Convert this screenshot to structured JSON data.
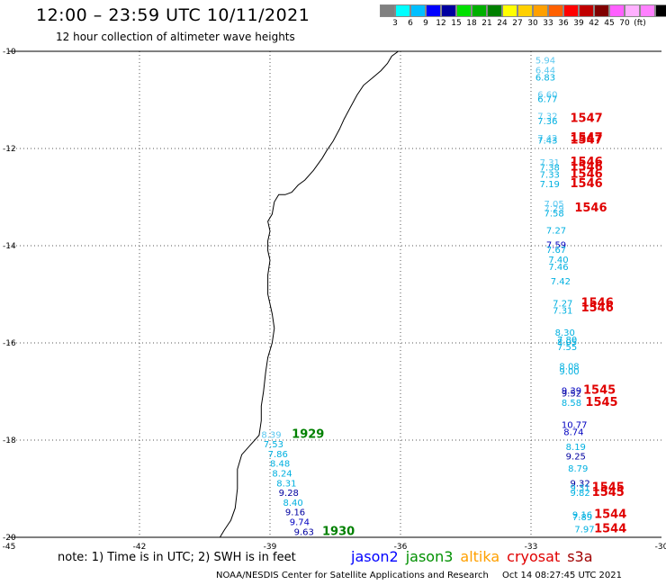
{
  "header": {
    "title": "12:00 – 23:59 UTC 10/11/2021",
    "subtitle": "12 hour collection of altimeter wave heights"
  },
  "legend": {
    "colors": [
      "#808080",
      "#00ffff",
      "#00bfff",
      "#0000ff",
      "#0000a0",
      "#00e000",
      "#00b000",
      "#008000",
      "#ffff00",
      "#ffd000",
      "#ffa000",
      "#ff6000",
      "#ff0000",
      "#c00000",
      "#800000",
      "#ff60ff",
      "#ffb0ff",
      "#ff80ff",
      "#000000"
    ],
    "labels": [
      "3",
      "6",
      "9",
      "12",
      "15",
      "18",
      "21",
      "24",
      "27",
      "30",
      "33",
      "36",
      "39",
      "42",
      "45",
      "70",
      "(ft)"
    ]
  },
  "map": {
    "lon_range": [
      -45,
      -30
    ],
    "lat_range": [
      -20,
      -10
    ],
    "lon_ticks": [
      -45,
      -42,
      -39,
      -36,
      -33,
      -30
    ],
    "lon_tick_labels": [
      "-45",
      "-42",
      "-39",
      "-36",
      "-33",
      "-30"
    ],
    "lat_ticks": [
      -10,
      -12,
      -14,
      -16,
      -18,
      -20
    ],
    "lat_tick_labels": [
      "-10",
      "-12",
      "-14",
      "-16",
      "-18",
      "-20"
    ],
    "gridlines": true
  },
  "observations": [
    {
      "lon": -32.9,
      "lat": -10.25,
      "value": "5.94",
      "color": "#5ac8f0"
    },
    {
      "lon": -32.9,
      "lat": -10.45,
      "value": "6.44",
      "color": "#5ac8f0"
    },
    {
      "lon": -32.9,
      "lat": -10.6,
      "value": "6.83",
      "color": "#00b0e0"
    },
    {
      "lon": -32.85,
      "lat": -10.95,
      "value": "6.60",
      "color": "#5ac8f0"
    },
    {
      "lon": -32.85,
      "lat": -11.05,
      "value": "6.77",
      "color": "#00b0e0"
    },
    {
      "lon": -32.85,
      "lat": -11.4,
      "value": "7.32",
      "color": "#5ac8f0"
    },
    {
      "lon": -32.85,
      "lat": -11.5,
      "value": "7.36",
      "color": "#00b0e0"
    },
    {
      "lon": -32.85,
      "lat": -11.85,
      "value": "7.42",
      "color": "#5ac8f0"
    },
    {
      "lon": -32.85,
      "lat": -11.9,
      "value": "7.43",
      "color": "#00b0e0"
    },
    {
      "lon": -32.8,
      "lat": -12.35,
      "value": "7.31",
      "color": "#5ac8f0"
    },
    {
      "lon": -32.8,
      "lat": -12.45,
      "value": "7.38",
      "color": "#00b0e0"
    },
    {
      "lon": -32.8,
      "lat": -12.6,
      "value": "7.33",
      "color": "#00b0e0"
    },
    {
      "lon": -32.8,
      "lat": -12.8,
      "value": "7.19",
      "color": "#00b0e0"
    },
    {
      "lon": -32.7,
      "lat": -13.2,
      "value": "7.05",
      "color": "#5ac8f0"
    },
    {
      "lon": -32.7,
      "lat": -13.3,
      "value": "7.29",
      "color": "#5ac8f0"
    },
    {
      "lon": -32.7,
      "lat": -13.4,
      "value": "7.58",
      "color": "#00b0e0"
    },
    {
      "lon": -32.65,
      "lat": -13.75,
      "value": "7.27",
      "color": "#00b0e0"
    },
    {
      "lon": -32.65,
      "lat": -14.05,
      "value": "7.59",
      "color": "#0000c0"
    },
    {
      "lon": -32.65,
      "lat": -14.15,
      "value": "7.67",
      "color": "#00b0e0"
    },
    {
      "lon": -32.6,
      "lat": -14.35,
      "value": "7.40",
      "color": "#00b0e0"
    },
    {
      "lon": -32.6,
      "lat": -14.5,
      "value": "7.46",
      "color": "#00b0e0"
    },
    {
      "lon": -32.55,
      "lat": -14.8,
      "value": "7.42",
      "color": "#00b0e0"
    },
    {
      "lon": -32.5,
      "lat": -15.25,
      "value": "7.27",
      "color": "#00b0e0"
    },
    {
      "lon": -32.5,
      "lat": -15.4,
      "value": "7.31",
      "color": "#00b0e0"
    },
    {
      "lon": -32.45,
      "lat": -15.85,
      "value": "8.30",
      "color": "#00b0e0"
    },
    {
      "lon": -32.4,
      "lat": -16.0,
      "value": "7.80",
      "color": "#00b0e0"
    },
    {
      "lon": -32.4,
      "lat": -16.05,
      "value": "8.05",
      "color": "#00b0e0"
    },
    {
      "lon": -32.4,
      "lat": -16.15,
      "value": "7.55",
      "color": "#00b0e0"
    },
    {
      "lon": -32.35,
      "lat": -16.55,
      "value": "8.08",
      "color": "#00b0e0"
    },
    {
      "lon": -32.35,
      "lat": -16.65,
      "value": "9.00",
      "color": "#00b0e0"
    },
    {
      "lon": -32.3,
      "lat": -17.05,
      "value": "9.39",
      "color": "#0000c0"
    },
    {
      "lon": -32.3,
      "lat": -17.1,
      "value": "9.52",
      "color": "#0000a0"
    },
    {
      "lon": -32.3,
      "lat": -17.3,
      "value": "8.58",
      "color": "#00b0e0"
    },
    {
      "lon": -32.3,
      "lat": -17.75,
      "value": "10.77",
      "color": "#0000c0"
    },
    {
      "lon": -32.25,
      "lat": -17.9,
      "value": "8.74",
      "color": "#0000c0"
    },
    {
      "lon": -32.2,
      "lat": -18.2,
      "value": "8.19",
      "color": "#00b0e0"
    },
    {
      "lon": -32.2,
      "lat": -18.4,
      "value": "9.25",
      "color": "#0000a0"
    },
    {
      "lon": -32.15,
      "lat": -18.65,
      "value": "8.79",
      "color": "#00b0e0"
    },
    {
      "lon": -32.1,
      "lat": -18.95,
      "value": "9.32",
      "color": "#0000a0"
    },
    {
      "lon": -32.1,
      "lat": -19.05,
      "value": "9.31",
      "color": "#00b0e0"
    },
    {
      "lon": -32.1,
      "lat": -19.15,
      "value": "9.82",
      "color": "#00b0e0"
    },
    {
      "lon": -32.05,
      "lat": -19.6,
      "value": "9.16",
      "color": "#00b0e0"
    },
    {
      "lon": -32.05,
      "lat": -19.65,
      "value": "7.89",
      "color": "#00b0e0"
    },
    {
      "lon": -32.0,
      "lat": -19.9,
      "value": "7.97",
      "color": "#00b0e0"
    },
    {
      "lon": -39.2,
      "lat": -17.95,
      "value": "8.39",
      "color": "#5ac8f0"
    },
    {
      "lon": -39.15,
      "lat": -18.15,
      "value": "7.53",
      "color": "#00b0e0"
    },
    {
      "lon": -39.05,
      "lat": -18.35,
      "value": "7.86",
      "color": "#00b0e0"
    },
    {
      "lon": -39.0,
      "lat": -18.55,
      "value": "8.48",
      "color": "#00b0e0"
    },
    {
      "lon": -38.95,
      "lat": -18.75,
      "value": "8.24",
      "color": "#00b0e0"
    },
    {
      "lon": -38.85,
      "lat": -18.95,
      "value": "8.31",
      "color": "#00b0e0"
    },
    {
      "lon": -38.8,
      "lat": -19.15,
      "value": "9.28",
      "color": "#0000a0"
    },
    {
      "lon": -38.7,
      "lat": -19.35,
      "value": "8.40",
      "color": "#00b0e0"
    },
    {
      "lon": -38.65,
      "lat": -19.55,
      "value": "9.16",
      "color": "#0000a0"
    },
    {
      "lon": -38.55,
      "lat": -19.75,
      "value": "9.74",
      "color": "#0000c0"
    },
    {
      "lon": -38.45,
      "lat": -19.95,
      "value": "9.63",
      "color": "#0000a0"
    }
  ],
  "times": [
    {
      "lon": -32.1,
      "lat": -11.45,
      "value": "1547",
      "color": "#e00000"
    },
    {
      "lon": -32.1,
      "lat": -11.85,
      "value": "1547",
      "color": "#e00000"
    },
    {
      "lon": -32.1,
      "lat": -11.9,
      "value": "1547",
      "color": "#e00000"
    },
    {
      "lon": -32.1,
      "lat": -12.35,
      "value": "1546",
      "color": "#e00000"
    },
    {
      "lon": -32.1,
      "lat": -12.45,
      "value": "1546",
      "color": "#e00000"
    },
    {
      "lon": -32.1,
      "lat": -12.6,
      "value": "1546",
      "color": "#e00000"
    },
    {
      "lon": -32.1,
      "lat": -12.8,
      "value": "1546",
      "color": "#e00000"
    },
    {
      "lon": -32.0,
      "lat": -13.3,
      "value": "1546",
      "color": "#e00000"
    },
    {
      "lon": -31.85,
      "lat": -15.25,
      "value": "1546",
      "color": "#e00000"
    },
    {
      "lon": -31.85,
      "lat": -15.35,
      "value": "1546",
      "color": "#e00000"
    },
    {
      "lon": -31.8,
      "lat": -17.05,
      "value": "1545",
      "color": "#e00000"
    },
    {
      "lon": -31.75,
      "lat": -17.3,
      "value": "1545",
      "color": "#e00000"
    },
    {
      "lon": -31.6,
      "lat": -19.05,
      "value": "1545",
      "color": "#e00000"
    },
    {
      "lon": -31.6,
      "lat": -19.15,
      "value": "1545",
      "color": "#e00000"
    },
    {
      "lon": -31.55,
      "lat": -19.6,
      "value": "1544",
      "color": "#e00000"
    },
    {
      "lon": -31.55,
      "lat": -19.9,
      "value": "1544",
      "color": "#e00000"
    },
    {
      "lon": -38.5,
      "lat": -17.95,
      "value": "1929",
      "color": "#008000"
    },
    {
      "lon": -37.8,
      "lat": -19.95,
      "value": "1930",
      "color": "#008000"
    }
  ],
  "coastline": [
    [
      -36.05,
      -10.0
    ],
    [
      -36.2,
      -10.1
    ],
    [
      -36.3,
      -10.25
    ],
    [
      -36.45,
      -10.4
    ],
    [
      -36.65,
      -10.55
    ],
    [
      -36.85,
      -10.7
    ],
    [
      -37.0,
      -10.9
    ],
    [
      -37.15,
      -11.15
    ],
    [
      -37.3,
      -11.4
    ],
    [
      -37.4,
      -11.6
    ],
    [
      -37.55,
      -11.85
    ],
    [
      -37.7,
      -12.05
    ],
    [
      -37.8,
      -12.2
    ],
    [
      -38.0,
      -12.45
    ],
    [
      -38.2,
      -12.65
    ],
    [
      -38.35,
      -12.75
    ],
    [
      -38.5,
      -12.9
    ],
    [
      -38.65,
      -12.95
    ],
    [
      -38.8,
      -12.95
    ],
    [
      -38.9,
      -13.1
    ],
    [
      -38.95,
      -13.35
    ],
    [
      -39.05,
      -13.5
    ],
    [
      -39.0,
      -13.7
    ],
    [
      -39.05,
      -13.9
    ],
    [
      -39.05,
      -14.1
    ],
    [
      -39.0,
      -14.3
    ],
    [
      -39.05,
      -14.6
    ],
    [
      -39.05,
      -15.0
    ],
    [
      -38.95,
      -15.4
    ],
    [
      -38.9,
      -15.7
    ],
    [
      -38.95,
      -16.0
    ],
    [
      -39.05,
      -16.3
    ],
    [
      -39.1,
      -16.6
    ],
    [
      -39.15,
      -17.0
    ],
    [
      -39.2,
      -17.3
    ],
    [
      -39.2,
      -17.6
    ],
    [
      -39.25,
      -17.9
    ],
    [
      -39.45,
      -18.1
    ],
    [
      -39.65,
      -18.3
    ],
    [
      -39.75,
      -18.6
    ],
    [
      -39.75,
      -19.0
    ],
    [
      -39.8,
      -19.4
    ],
    [
      -39.9,
      -19.65
    ],
    [
      -40.05,
      -19.85
    ],
    [
      -40.15,
      -20.0
    ]
  ],
  "footer_note": "note: 1) Time is in UTC; 2) SWH is in feet",
  "satellites": [
    {
      "name": "jason2",
      "color": "#0000ff"
    },
    {
      "name": "jason3",
      "color": "#009000"
    },
    {
      "name": "altika",
      "color": "#ffa000"
    },
    {
      "name": "cryosat",
      "color": "#e00000"
    },
    {
      "name": "s3a",
      "color": "#a00000"
    }
  ],
  "credits": {
    "org": "NOAA/NESDIS Center for Satellite Applications and Research",
    "timestamp": "Oct 14 08:27:45 UTC 2021"
  }
}
